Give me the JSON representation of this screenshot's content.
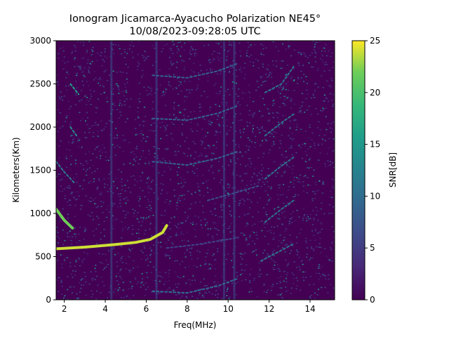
{
  "chart_data": {
    "type": "heatmap",
    "title": "Ionogram Jicamarca-Ayacucho Polarization NE45°",
    "subtitle": "10/08/2023-09:28:05 UTC",
    "xlabel": "Freq(MHz)",
    "ylabel": "Kilometers(Km)",
    "xlim": [
      1.6,
      15.2
    ],
    "ylim": [
      0,
      3000
    ],
    "x_ticks": [
      2,
      4,
      6,
      8,
      10,
      12,
      14
    ],
    "x_tick_labels": [
      "2",
      "4",
      "6",
      "8",
      "10",
      "12",
      "14"
    ],
    "y_ticks": [
      0,
      500,
      1000,
      1500,
      2000,
      2500,
      3000
    ],
    "y_tick_labels": [
      "0",
      "500",
      "1000",
      "1500",
      "2000",
      "2500",
      "3000"
    ],
    "colorbar": {
      "label": "SNR[dB]",
      "range": [
        0,
        25
      ],
      "ticks": [
        0,
        5,
        10,
        15,
        20,
        25
      ],
      "tick_labels": [
        "0",
        "5",
        "10",
        "15",
        "20",
        "25"
      ],
      "colormap": "viridis"
    },
    "traces": [
      {
        "points": [
          [
            1.6,
            590
          ],
          [
            3.0,
            610
          ],
          [
            4.5,
            640
          ],
          [
            5.5,
            665
          ],
          [
            6.2,
            700
          ],
          [
            6.8,
            780
          ],
          [
            7.0,
            860
          ]
        ],
        "snr": 24
      },
      {
        "points": [
          [
            1.6,
            1050
          ],
          [
            2.0,
            920
          ],
          [
            2.4,
            830
          ]
        ],
        "snr": 22
      },
      {
        "points": [
          [
            1.6,
            1600
          ],
          [
            2.0,
            1480
          ],
          [
            2.5,
            1350
          ]
        ],
        "snr": 12
      },
      {
        "points": [
          [
            2.3,
            2500
          ],
          [
            2.7,
            2380
          ]
        ],
        "snr": 16
      },
      {
        "points": [
          [
            2.3,
            2000
          ],
          [
            2.6,
            1900
          ]
        ],
        "snr": 14
      },
      {
        "points": [
          [
            6.3,
            100
          ],
          [
            8.0,
            80
          ],
          [
            9.5,
            160
          ],
          [
            10.5,
            250
          ]
        ],
        "snr": 10
      },
      {
        "points": [
          [
            6.3,
            1600
          ],
          [
            8.0,
            1560
          ],
          [
            9.5,
            1640
          ],
          [
            10.5,
            1720
          ]
        ],
        "snr": 9
      },
      {
        "points": [
          [
            6.3,
            2100
          ],
          [
            8.0,
            2080
          ],
          [
            9.5,
            2160
          ],
          [
            10.5,
            2250
          ]
        ],
        "snr": 9
      },
      {
        "points": [
          [
            6.3,
            2600
          ],
          [
            8.0,
            2570
          ],
          [
            9.5,
            2650
          ],
          [
            10.5,
            2740
          ]
        ],
        "snr": 9
      },
      {
        "points": [
          [
            7.0,
            600
          ],
          [
            8.5,
            640
          ],
          [
            10.5,
            720
          ]
        ],
        "snr": 6
      },
      {
        "points": [
          [
            9.0,
            1150
          ],
          [
            10.5,
            1250
          ],
          [
            11.5,
            1320
          ]
        ],
        "snr": 7
      },
      {
        "points": [
          [
            11.6,
            450
          ],
          [
            12.5,
            560
          ],
          [
            13.2,
            650
          ]
        ],
        "snr": 11
      },
      {
        "points": [
          [
            11.8,
            900
          ],
          [
            12.6,
            1050
          ],
          [
            13.2,
            1150
          ]
        ],
        "snr": 11
      },
      {
        "points": [
          [
            11.8,
            1400
          ],
          [
            12.6,
            1550
          ],
          [
            13.2,
            1650
          ]
        ],
        "snr": 11
      },
      {
        "points": [
          [
            11.8,
            1900
          ],
          [
            12.6,
            2050
          ],
          [
            13.2,
            2150
          ]
        ],
        "snr": 11
      },
      {
        "points": [
          [
            11.8,
            2400
          ],
          [
            12.6,
            2500
          ],
          [
            13.2,
            2700
          ]
        ],
        "snr": 11
      }
    ]
  }
}
